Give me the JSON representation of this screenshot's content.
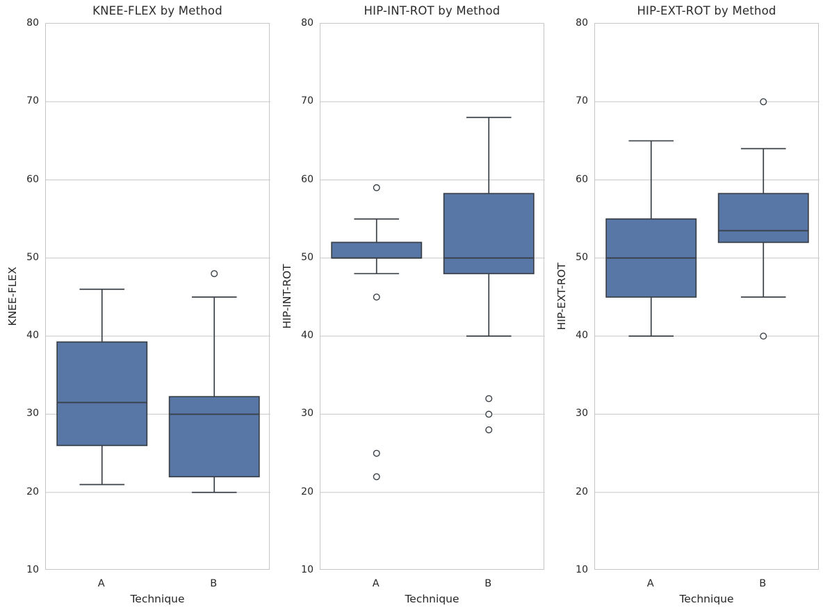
{
  "style": {
    "box_fill": "#5876a6",
    "line_color": "#3a4047",
    "grid_color": "#d2d2d2",
    "spine_color": "#c6c6c6",
    "text_color": "#262626",
    "background": "#ffffff"
  },
  "chart_data": [
    {
      "type": "boxplot",
      "title": "KNEE-FLEX by Method",
      "xlabel": "Technique",
      "ylabel": "KNEE-FLEX",
      "ylim": [
        10,
        80
      ],
      "yticks": [
        10,
        20,
        30,
        40,
        50,
        60,
        70,
        80
      ],
      "grid": true,
      "legend": "none",
      "categories": [
        "A",
        "B"
      ],
      "boxes": [
        {
          "category": "A",
          "whisker_low": 21,
          "q1": 26,
          "median": 31.5,
          "q3": 39.25,
          "whisker_high": 46,
          "outliers": []
        },
        {
          "category": "B",
          "whisker_low": 20,
          "q1": 22,
          "median": 30,
          "q3": 32.25,
          "whisker_high": 45,
          "outliers": [
            48
          ]
        }
      ]
    },
    {
      "type": "boxplot",
      "title": "HIP-INT-ROT by Method",
      "xlabel": "Technique",
      "ylabel": "HIP-INT-ROT",
      "ylim": [
        10,
        80
      ],
      "yticks": [
        10,
        20,
        30,
        40,
        50,
        60,
        70,
        80
      ],
      "grid": true,
      "legend": "none",
      "categories": [
        "A",
        "B"
      ],
      "boxes": [
        {
          "category": "A",
          "whisker_low": 48,
          "q1": 50,
          "median": 50,
          "q3": 52,
          "whisker_high": 55,
          "outliers": [
            59,
            45,
            25,
            22
          ]
        },
        {
          "category": "B",
          "whisker_low": 40,
          "q1": 48,
          "median": 50,
          "q3": 58.25,
          "whisker_high": 68,
          "outliers": [
            32,
            30,
            28
          ]
        }
      ]
    },
    {
      "type": "boxplot",
      "title": "HIP-EXT-ROT by Method",
      "xlabel": "Technique",
      "ylabel": "HIP-EXT-ROT",
      "ylim": [
        10,
        80
      ],
      "yticks": [
        10,
        20,
        30,
        40,
        50,
        60,
        70,
        80
      ],
      "grid": true,
      "legend": "none",
      "categories": [
        "A",
        "B"
      ],
      "boxes": [
        {
          "category": "A",
          "whisker_low": 40,
          "q1": 45,
          "median": 50,
          "q3": 55,
          "whisker_high": 65,
          "outliers": []
        },
        {
          "category": "B",
          "whisker_low": 45,
          "q1": 52,
          "median": 53.5,
          "q3": 58.25,
          "whisker_high": 64,
          "outliers": [
            70,
            40
          ]
        }
      ]
    }
  ]
}
